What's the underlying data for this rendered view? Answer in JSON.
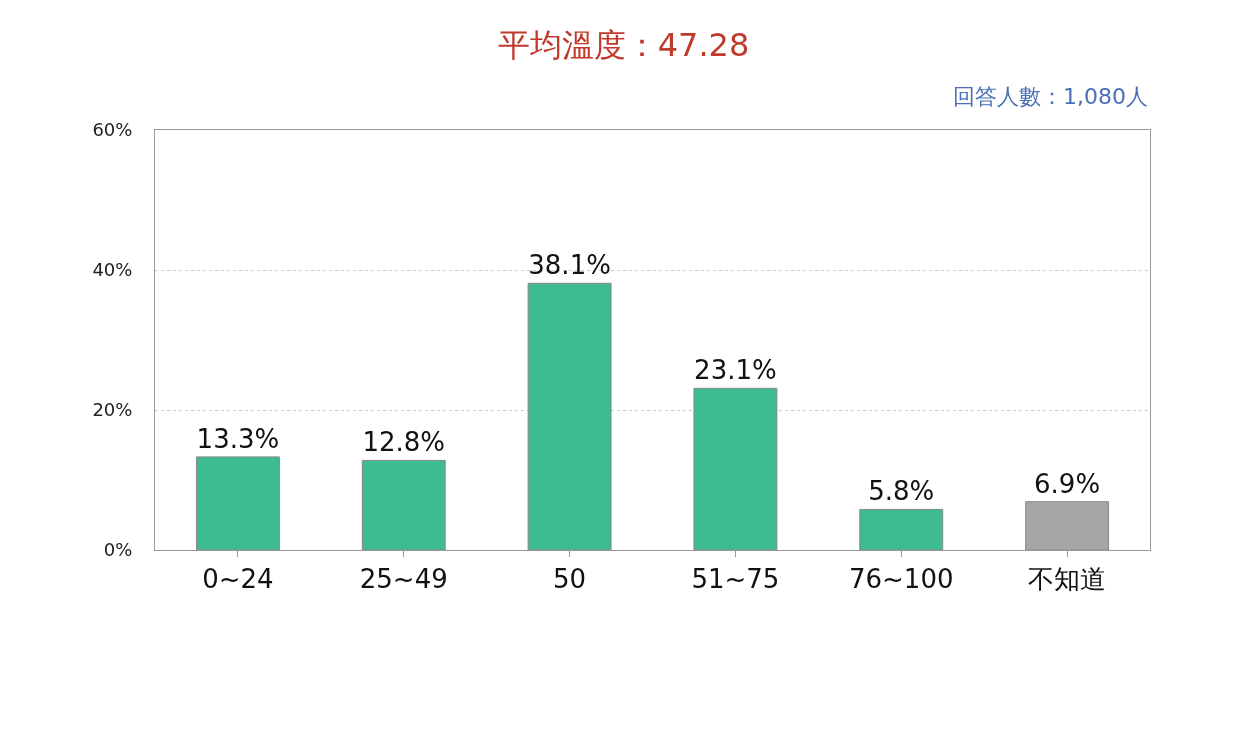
{
  "chart_data": {
    "type": "bar",
    "title": "平均溫度：47.28",
    "subtitle": "回答人數：1,080人",
    "categories": [
      "0~24",
      "25~49",
      "50",
      "51~75",
      "76~100",
      "不知道"
    ],
    "values": [
      13.3,
      12.8,
      38.1,
      23.1,
      5.8,
      6.9
    ],
    "colors": [
      "#3dbb91",
      "#3dbb91",
      "#3dbb91",
      "#3dbb91",
      "#3dbb91",
      "#a6a6a6"
    ],
    "value_labels": [
      "13.3%",
      "12.8%",
      "38.1%",
      "23.1%",
      "5.8%",
      "6.9%"
    ],
    "ylim": [
      0,
      60
    ],
    "yticks": [
      {
        "value": 0,
        "label": "0%"
      },
      {
        "value": 20,
        "label": "20%"
      },
      {
        "value": 40,
        "label": "40%"
      },
      {
        "value": 60,
        "label": "60%"
      }
    ],
    "grid": "y",
    "legend": false
  }
}
